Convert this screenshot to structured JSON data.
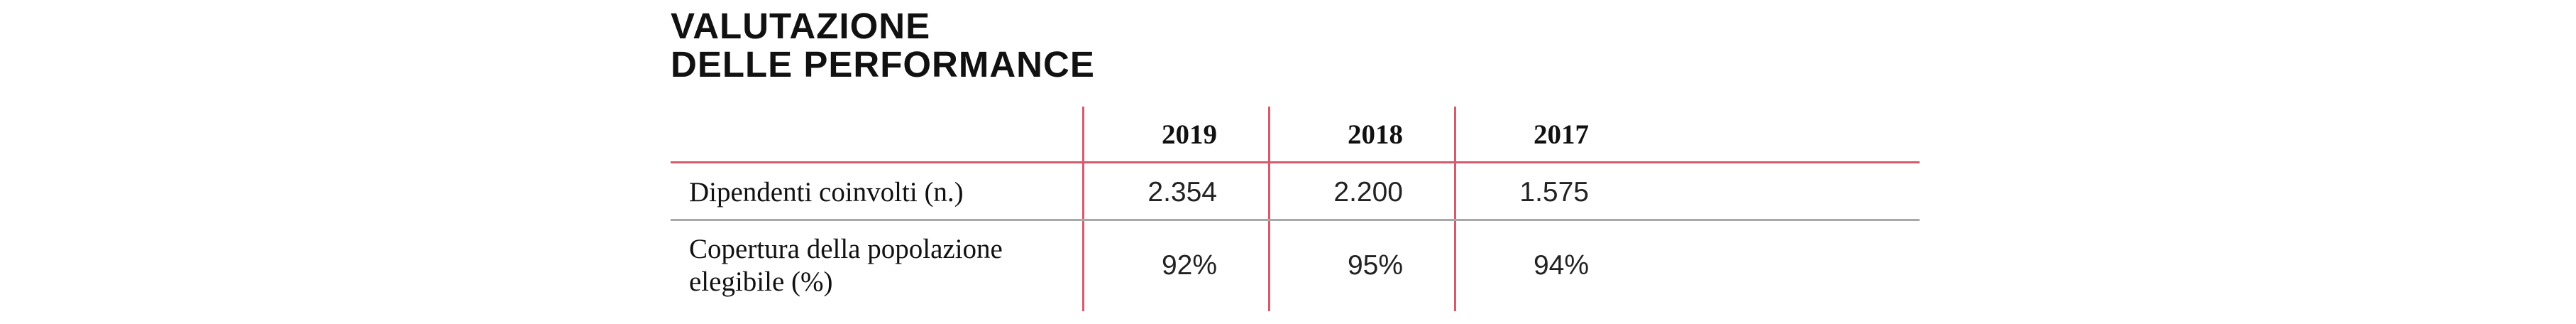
{
  "title": {
    "line1": "VALUTAZIONE",
    "line2": "DELLE PERFORMANCE"
  },
  "table": {
    "columns": [
      "2019",
      "2018",
      "2017"
    ],
    "rows": [
      {
        "label": "Dipendenti coinvolti (n.)",
        "values": [
          "2.354",
          "2.200",
          "1.575"
        ]
      },
      {
        "label_line1": "Copertura della popolazione",
        "label_line2": "elegibile (%)",
        "values": [
          "92%",
          "95%",
          "94%"
        ]
      }
    ]
  },
  "colors": {
    "accent_rule": "#d45a6e",
    "row_divider": "#a8a8a8"
  }
}
